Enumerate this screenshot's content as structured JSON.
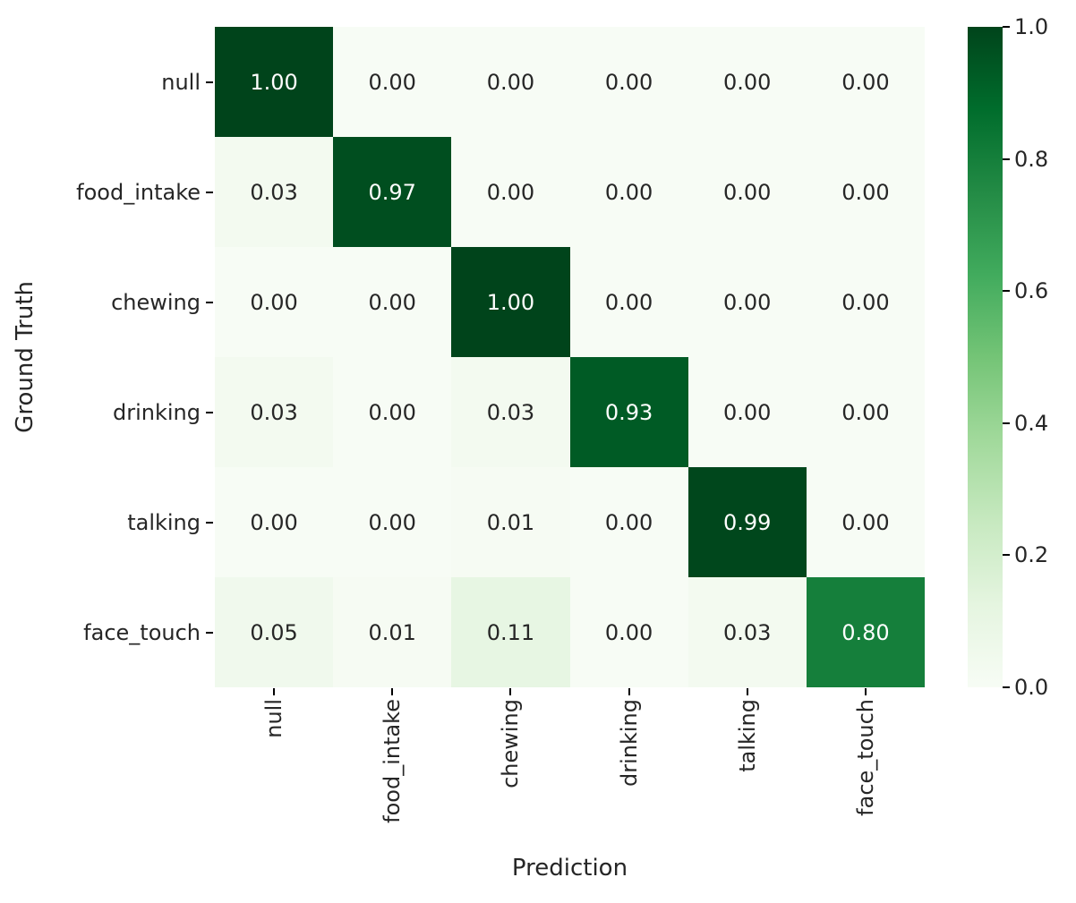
{
  "chart_data": {
    "type": "heatmap",
    "xlabel": "Prediction",
    "ylabel": "Ground Truth",
    "categories": [
      "null",
      "food_intake",
      "chewing",
      "drinking",
      "talking",
      "face_touch"
    ],
    "rows": [
      [
        1.0,
        0.0,
        0.0,
        0.0,
        0.0,
        0.0
      ],
      [
        0.03,
        0.97,
        0.0,
        0.0,
        0.0,
        0.0
      ],
      [
        0.0,
        0.0,
        1.0,
        0.0,
        0.0,
        0.0
      ],
      [
        0.03,
        0.0,
        0.03,
        0.93,
        0.0,
        0.0
      ],
      [
        0.0,
        0.0,
        0.01,
        0.0,
        0.99,
        0.0
      ],
      [
        0.05,
        0.01,
        0.11,
        0.0,
        0.03,
        0.8
      ]
    ],
    "value_format_decimals": 2,
    "vmin": 0.0,
    "vmax": 1.0,
    "colormap": {
      "name": "Greens",
      "anchors": [
        "#f7fcf5",
        "#e5f5e0",
        "#c7e9c0",
        "#a1d99b",
        "#74c476",
        "#41ab5d",
        "#238b45",
        "#006d2c",
        "#00441b"
      ]
    },
    "annotation_colors": {
      "light_text": "#ffffff",
      "dark_text": "#262626"
    },
    "colorbar": {
      "position": "right",
      "tick_labels": [
        "1.0",
        "0.8",
        "0.6",
        "0.4",
        "0.2",
        "0.0"
      ]
    },
    "grid": false,
    "legend_position": "none"
  }
}
